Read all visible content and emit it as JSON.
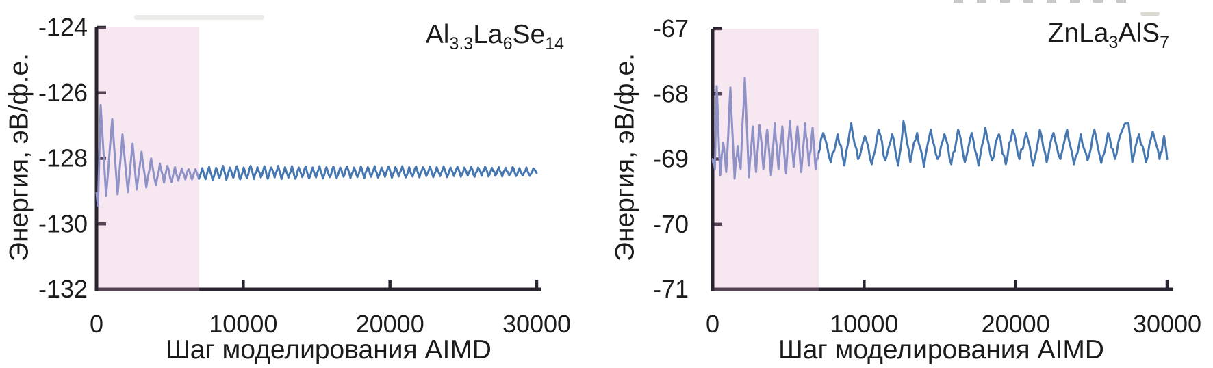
{
  "figure": {
    "background": "#ffffff",
    "description_labels": {
      "shared_xlabel": "Шаг моделирования AIMD",
      "shared_ylabel": "Энергия, эВ/ф.е."
    }
  },
  "chart_data": [
    {
      "type": "line",
      "title": "Al3.3La6Se14",
      "title_segments": [
        {
          "t": "Al"
        },
        {
          "t": "3.3",
          "sub": true
        },
        {
          "t": "La"
        },
        {
          "t": "6",
          "sub": true
        },
        {
          "t": "Se"
        },
        {
          "t": "14",
          "sub": true
        }
      ],
      "xlabel": "Шаг моделирования AIMD",
      "ylabel": "Энергия, эВ/ф.е.",
      "xlim": [
        0,
        30000
      ],
      "ylim": [
        -132,
        -124
      ],
      "xticks": [
        0,
        10000,
        20000,
        30000
      ],
      "yticks": [
        -124,
        -126,
        -128,
        -130,
        -132
      ],
      "grid": false,
      "legend": false,
      "equilibration_region": {
        "x_start": 0,
        "x_end": 7000,
        "fill": "#db9fc7",
        "opacity": 0.25
      },
      "colors": {
        "axis": "#2a2430",
        "text": "#1b1b1b",
        "line_equilibration": "#8e92c6",
        "line_production": "#4677b1"
      },
      "noise": {
        "amplitude": 0.05,
        "subdivisions": 3,
        "seed": 11
      },
      "points": [
        [
          0,
          -129.05
        ],
        [
          100,
          -129.45
        ],
        [
          280,
          -126.37
        ],
        [
          650,
          -129.15
        ],
        [
          1070,
          -126.8
        ],
        [
          1440,
          -129.1
        ],
        [
          1770,
          -127.27
        ],
        [
          2140,
          -129.03
        ],
        [
          2460,
          -127.55
        ],
        [
          2740,
          -128.95
        ],
        [
          3070,
          -127.8
        ],
        [
          3390,
          -128.89
        ],
        [
          3720,
          -128.0
        ],
        [
          4050,
          -128.82
        ],
        [
          4320,
          -128.16
        ],
        [
          4600,
          -128.74
        ],
        [
          4830,
          -128.23
        ],
        [
          5110,
          -128.72
        ],
        [
          5350,
          -128.27
        ],
        [
          5580,
          -128.68
        ],
        [
          5810,
          -128.31
        ],
        [
          6050,
          -128.64
        ],
        [
          6280,
          -128.33
        ],
        [
          6510,
          -128.64
        ],
        [
          6740,
          -128.33
        ],
        [
          6980,
          -128.62
        ],
        [
          7210,
          -128.3
        ],
        [
          7440,
          -128.63
        ],
        [
          7680,
          -128.26
        ],
        [
          7910,
          -128.66
        ],
        [
          8150,
          -128.29
        ],
        [
          8380,
          -128.6
        ],
        [
          8620,
          -128.23
        ],
        [
          8850,
          -128.65
        ],
        [
          9090,
          -128.28
        ],
        [
          9320,
          -128.59
        ],
        [
          9560,
          -128.24
        ],
        [
          9790,
          -128.64
        ],
        [
          10030,
          -128.28
        ],
        [
          10260,
          -128.6
        ],
        [
          10500,
          -128.23
        ],
        [
          10730,
          -128.63
        ],
        [
          10970,
          -128.27
        ],
        [
          11200,
          -128.58
        ],
        [
          11440,
          -128.24
        ],
        [
          11670,
          -128.62
        ],
        [
          11910,
          -128.28
        ],
        [
          12140,
          -128.58
        ],
        [
          12380,
          -128.23
        ],
        [
          12610,
          -128.63
        ],
        [
          12850,
          -128.27
        ],
        [
          13080,
          -128.59
        ],
        [
          13320,
          -128.24
        ],
        [
          13550,
          -128.62
        ],
        [
          13790,
          -128.28
        ],
        [
          14020,
          -128.57
        ],
        [
          14260,
          -128.25
        ],
        [
          14490,
          -128.61
        ],
        [
          14730,
          -128.28
        ],
        [
          14960,
          -128.58
        ],
        [
          15200,
          -128.24
        ],
        [
          15430,
          -128.61
        ],
        [
          15670,
          -128.27
        ],
        [
          15900,
          -128.57
        ],
        [
          16140,
          -128.25
        ],
        [
          16370,
          -128.6
        ],
        [
          16610,
          -128.28
        ],
        [
          16840,
          -128.56
        ],
        [
          17080,
          -128.25
        ],
        [
          17310,
          -128.6
        ],
        [
          17550,
          -128.28
        ],
        [
          17780,
          -128.57
        ],
        [
          18020,
          -128.25
        ],
        [
          18250,
          -128.6
        ],
        [
          18490,
          -128.27
        ],
        [
          18720,
          -128.56
        ],
        [
          18960,
          -128.24
        ],
        [
          19190,
          -128.59
        ],
        [
          19430,
          -128.28
        ],
        [
          19660,
          -128.56
        ],
        [
          19900,
          -128.25
        ],
        [
          20130,
          -128.59
        ],
        [
          20370,
          -128.27
        ],
        [
          20600,
          -128.55
        ],
        [
          20840,
          -128.24
        ],
        [
          21070,
          -128.58
        ],
        [
          21310,
          -128.27
        ],
        [
          21540,
          -128.55
        ],
        [
          21780,
          -128.25
        ],
        [
          22010,
          -128.58
        ],
        [
          22250,
          -128.27
        ],
        [
          22480,
          -128.54
        ],
        [
          22720,
          -128.25
        ],
        [
          22950,
          -128.57
        ],
        [
          23190,
          -128.27
        ],
        [
          23420,
          -128.54
        ],
        [
          23660,
          -128.25
        ],
        [
          23890,
          -128.57
        ],
        [
          24130,
          -128.28
        ],
        [
          24360,
          -128.54
        ],
        [
          24600,
          -128.26
        ],
        [
          24830,
          -128.56
        ],
        [
          25070,
          -128.28
        ],
        [
          25300,
          -128.53
        ],
        [
          25540,
          -128.26
        ],
        [
          25770,
          -128.56
        ],
        [
          26010,
          -128.28
        ],
        [
          26240,
          -128.53
        ],
        [
          26480,
          -128.26
        ],
        [
          26710,
          -128.55
        ],
        [
          26950,
          -128.29
        ],
        [
          27180,
          -128.53
        ],
        [
          27420,
          -128.27
        ],
        [
          27650,
          -128.55
        ],
        [
          27890,
          -128.29
        ],
        [
          28120,
          -128.52
        ],
        [
          28360,
          -128.27
        ],
        [
          28590,
          -128.54
        ],
        [
          28830,
          -128.3
        ],
        [
          29060,
          -128.52
        ],
        [
          29300,
          -128.28
        ],
        [
          29530,
          -128.53
        ],
        [
          29770,
          -128.31
        ],
        [
          30000,
          -128.45
        ]
      ]
    },
    {
      "type": "line",
      "title": "ZnLa3AlS7",
      "title_segments": [
        {
          "t": "ZnLa"
        },
        {
          "t": "3",
          "sub": true
        },
        {
          "t": "AlS"
        },
        {
          "t": "7",
          "sub": true
        }
      ],
      "xlabel": "Шаг моделирования AIMD",
      "ylabel": "Энергия, эВ/ф.е.",
      "xlim": [
        0,
        30000
      ],
      "ylim": [
        -71,
        -67
      ],
      "xticks": [
        0,
        10000,
        20000,
        30000
      ],
      "yticks": [
        -67,
        -68,
        -69,
        -70,
        -71
      ],
      "grid": false,
      "legend": false,
      "equilibration_region": {
        "x_start": 0,
        "x_end": 7000,
        "fill": "#db9fc7",
        "opacity": 0.25
      },
      "colors": {
        "axis": "#2a2430",
        "text": "#1b1b1b",
        "line_equilibration": "#8e92c6",
        "line_production": "#4677b1"
      },
      "noise": {
        "amplitude": 0.07,
        "subdivisions": 4,
        "seed": 29
      },
      "points": [
        [
          0,
          -69.0
        ],
        [
          150,
          -69.15
        ],
        [
          270,
          -67.88
        ],
        [
          500,
          -69.25
        ],
        [
          700,
          -68.75
        ],
        [
          900,
          -69.2
        ],
        [
          1175,
          -67.9
        ],
        [
          1450,
          -69.3
        ],
        [
          1650,
          -68.8
        ],
        [
          1850,
          -69.15
        ],
        [
          2125,
          -67.75
        ],
        [
          2400,
          -69.28
        ],
        [
          2650,
          -68.5
        ],
        [
          2870,
          -69.2
        ],
        [
          3100,
          -68.48
        ],
        [
          3350,
          -69.15
        ],
        [
          3600,
          -68.55
        ],
        [
          3850,
          -69.25
        ],
        [
          4100,
          -68.45
        ],
        [
          4350,
          -69.15
        ],
        [
          4600,
          -68.5
        ],
        [
          4850,
          -69.22
        ],
        [
          5100,
          -68.42
        ],
        [
          5350,
          -69.12
        ],
        [
          5600,
          -68.5
        ],
        [
          5850,
          -69.2
        ],
        [
          6100,
          -68.45
        ],
        [
          6350,
          -69.1
        ],
        [
          6600,
          -68.52
        ],
        [
          6800,
          -69.15
        ],
        [
          7000,
          -68.9
        ],
        [
          7300,
          -68.6
        ],
        [
          7800,
          -69.05
        ],
        [
          8250,
          -68.62
        ],
        [
          8700,
          -69.1
        ],
        [
          9150,
          -68.45
        ],
        [
          9600,
          -69.0
        ],
        [
          10050,
          -68.65
        ],
        [
          10500,
          -69.08
        ],
        [
          10950,
          -68.55
        ],
        [
          11400,
          -69.02
        ],
        [
          11850,
          -68.62
        ],
        [
          12250,
          -69.1
        ],
        [
          12600,
          -68.42
        ],
        [
          13050,
          -69.05
        ],
        [
          13500,
          -68.6
        ],
        [
          13950,
          -69.12
        ],
        [
          14400,
          -68.55
        ],
        [
          14850,
          -69.0
        ],
        [
          15300,
          -68.62
        ],
        [
          15750,
          -69.08
        ],
        [
          16200,
          -68.55
        ],
        [
          16650,
          -69.05
        ],
        [
          17100,
          -68.6
        ],
        [
          17550,
          -69.1
        ],
        [
          18000,
          -68.52
        ],
        [
          18450,
          -69.02
        ],
        [
          18900,
          -68.62
        ],
        [
          19350,
          -69.08
        ],
        [
          19800,
          -68.55
        ],
        [
          20250,
          -69.0
        ],
        [
          20700,
          -68.6
        ],
        [
          21150,
          -69.1
        ],
        [
          21600,
          -68.55
        ],
        [
          22050,
          -69.05
        ],
        [
          22500,
          -68.6
        ],
        [
          22950,
          -69.0
        ],
        [
          23400,
          -68.55
        ],
        [
          23850,
          -69.08
        ],
        [
          24300,
          -68.62
        ],
        [
          24750,
          -69.02
        ],
        [
          25200,
          -68.55
        ],
        [
          25650,
          -69.06
        ],
        [
          26100,
          -68.6
        ],
        [
          26550,
          -69.0
        ],
        [
          27000,
          -68.58
        ],
        [
          27450,
          -68.45
        ],
        [
          27700,
          -69.05
        ],
        [
          28150,
          -68.62
        ],
        [
          28600,
          -69.05
        ],
        [
          29050,
          -68.58
        ],
        [
          29500,
          -69.0
        ],
        [
          29800,
          -68.65
        ],
        [
          30000,
          -69.0
        ]
      ]
    }
  ]
}
